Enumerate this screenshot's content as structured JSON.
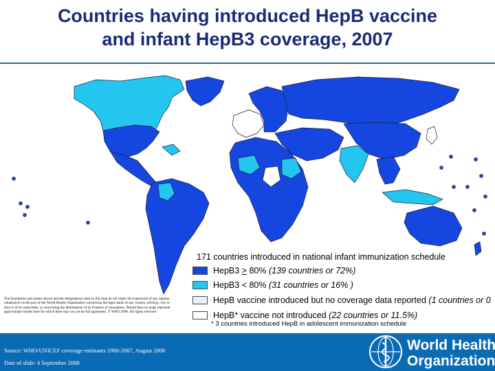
{
  "title": {
    "line1": "Countries having introduced HepB vaccine",
    "line2": "and infant HepB3 coverage, 2007"
  },
  "colors": {
    "high_coverage": "#1546e0",
    "low_coverage": "#24c6f0",
    "no_data": "#dfeefa",
    "not_introduced": "#ffffff",
    "ocean": "#ffffff",
    "title": "#1a2a78",
    "footer": "#0a6bb5"
  },
  "legend": {
    "summary": "171 countries introduced in national infant immunization schedule",
    "items": [
      {
        "label_pre": "HepB3 ",
        "label_u": ">",
        "label_post": " 80% ",
        "detail": "(139 countries or 72%)",
        "color": "#1546e0"
      },
      {
        "label_pre": "HepB3 < 80% ",
        "label_u": "",
        "label_post": "",
        "detail": "(31 countries or 16% )",
        "color": "#24c6f0"
      },
      {
        "label_pre": "HepB vaccine introduced but no coverage data reported ",
        "label_u": "",
        "label_post": "",
        "detail": "(1 countries or 0",
        "color": "hatched"
      },
      {
        "label_pre": "HepB* vaccine not introduced ",
        "label_u": "",
        "label_post": "",
        "detail": "(22 countries or 11.5%)",
        "color": "#ffffff"
      }
    ],
    "footnote": "* 3 countries introduced HepB in adolescent immunization schedule"
  },
  "disclaimer": "The boundaries and names shown and the designations used on this map do not imply the expression of any opinion whatsoever on the part of the World Health Organization concerning the legal status of any country, territory, city or area or of its authorities, or concerning the delimitation of its frontiers or boundaries. Dotted lines on maps represent approximate border lines for which there may not yet be full agreement. © WHO 2008. All rights reserved",
  "footer": {
    "source": "Source: WHO/UNICEF coverage estimates 1980-2007, August 2008",
    "date": "Date of slide: 4 September 2008",
    "org_line1": "World Health",
    "org_line2": "Organization"
  },
  "map": {
    "regions": [
      {
        "name": "North America",
        "coverage": "low"
      },
      {
        "name": "Greenland",
        "coverage": "high"
      },
      {
        "name": "Mexico and Central America",
        "coverage": "high"
      },
      {
        "name": "South America",
        "coverage": "high"
      },
      {
        "name": "Western Europe",
        "coverage": "not-introduced"
      },
      {
        "name": "Eastern Europe",
        "coverage": "high"
      },
      {
        "name": "Russia",
        "coverage": "high"
      },
      {
        "name": "Middle East",
        "coverage": "high"
      },
      {
        "name": "Africa",
        "coverage": "high"
      },
      {
        "name": "India",
        "coverage": "low"
      },
      {
        "name": "China",
        "coverage": "high"
      },
      {
        "name": "Southeast Asia",
        "coverage": "high"
      },
      {
        "name": "Indonesia",
        "coverage": "low"
      },
      {
        "name": "Australia",
        "coverage": "high"
      },
      {
        "name": "New Zealand",
        "coverage": "high"
      },
      {
        "name": "Japan",
        "coverage": "not-introduced"
      }
    ]
  }
}
